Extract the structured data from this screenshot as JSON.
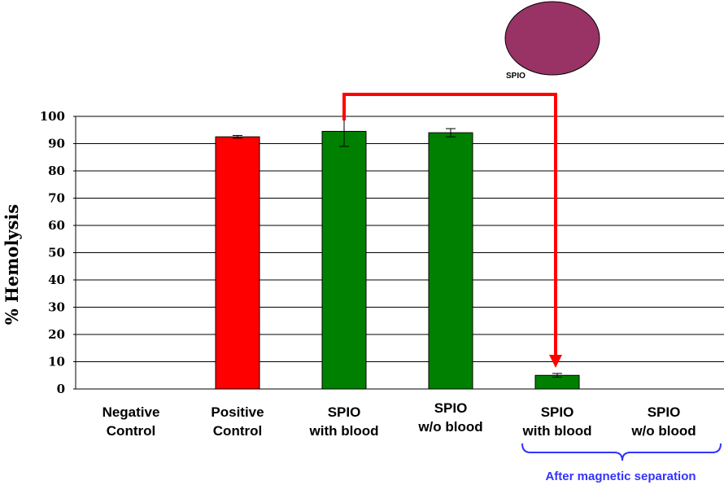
{
  "chart_data": {
    "type": "bar",
    "ylabel": "% Hemolysis",
    "xlabel": "",
    "ylim": [
      0,
      100
    ],
    "yticks": [
      0,
      10,
      20,
      30,
      40,
      50,
      60,
      70,
      80,
      90,
      100
    ],
    "grid": true,
    "categories": [
      [
        "Negative",
        "Control"
      ],
      [
        "Positive",
        "Control"
      ],
      [
        "SPIO",
        "with blood"
      ],
      [
        "SPIO",
        "w/o blood"
      ],
      [
        "SPIO",
        "with blood"
      ],
      [
        "SPIO",
        "w/o blood"
      ]
    ],
    "values": [
      0,
      92.5,
      94.5,
      94,
      5,
      0
    ],
    "errors": [
      0,
      0.5,
      5.5,
      1.5,
      0.7,
      0
    ],
    "colors": [
      "#ff0000",
      "#ff0000",
      "#008000",
      "#008000",
      "#008000",
      "#008000"
    ],
    "annotations": {
      "particle_label": "SPIO",
      "particle_color": "#993366",
      "arrow_color": "#ff0000",
      "bracket_color": "#3333ff",
      "group_label": "After magnetic separation"
    }
  }
}
